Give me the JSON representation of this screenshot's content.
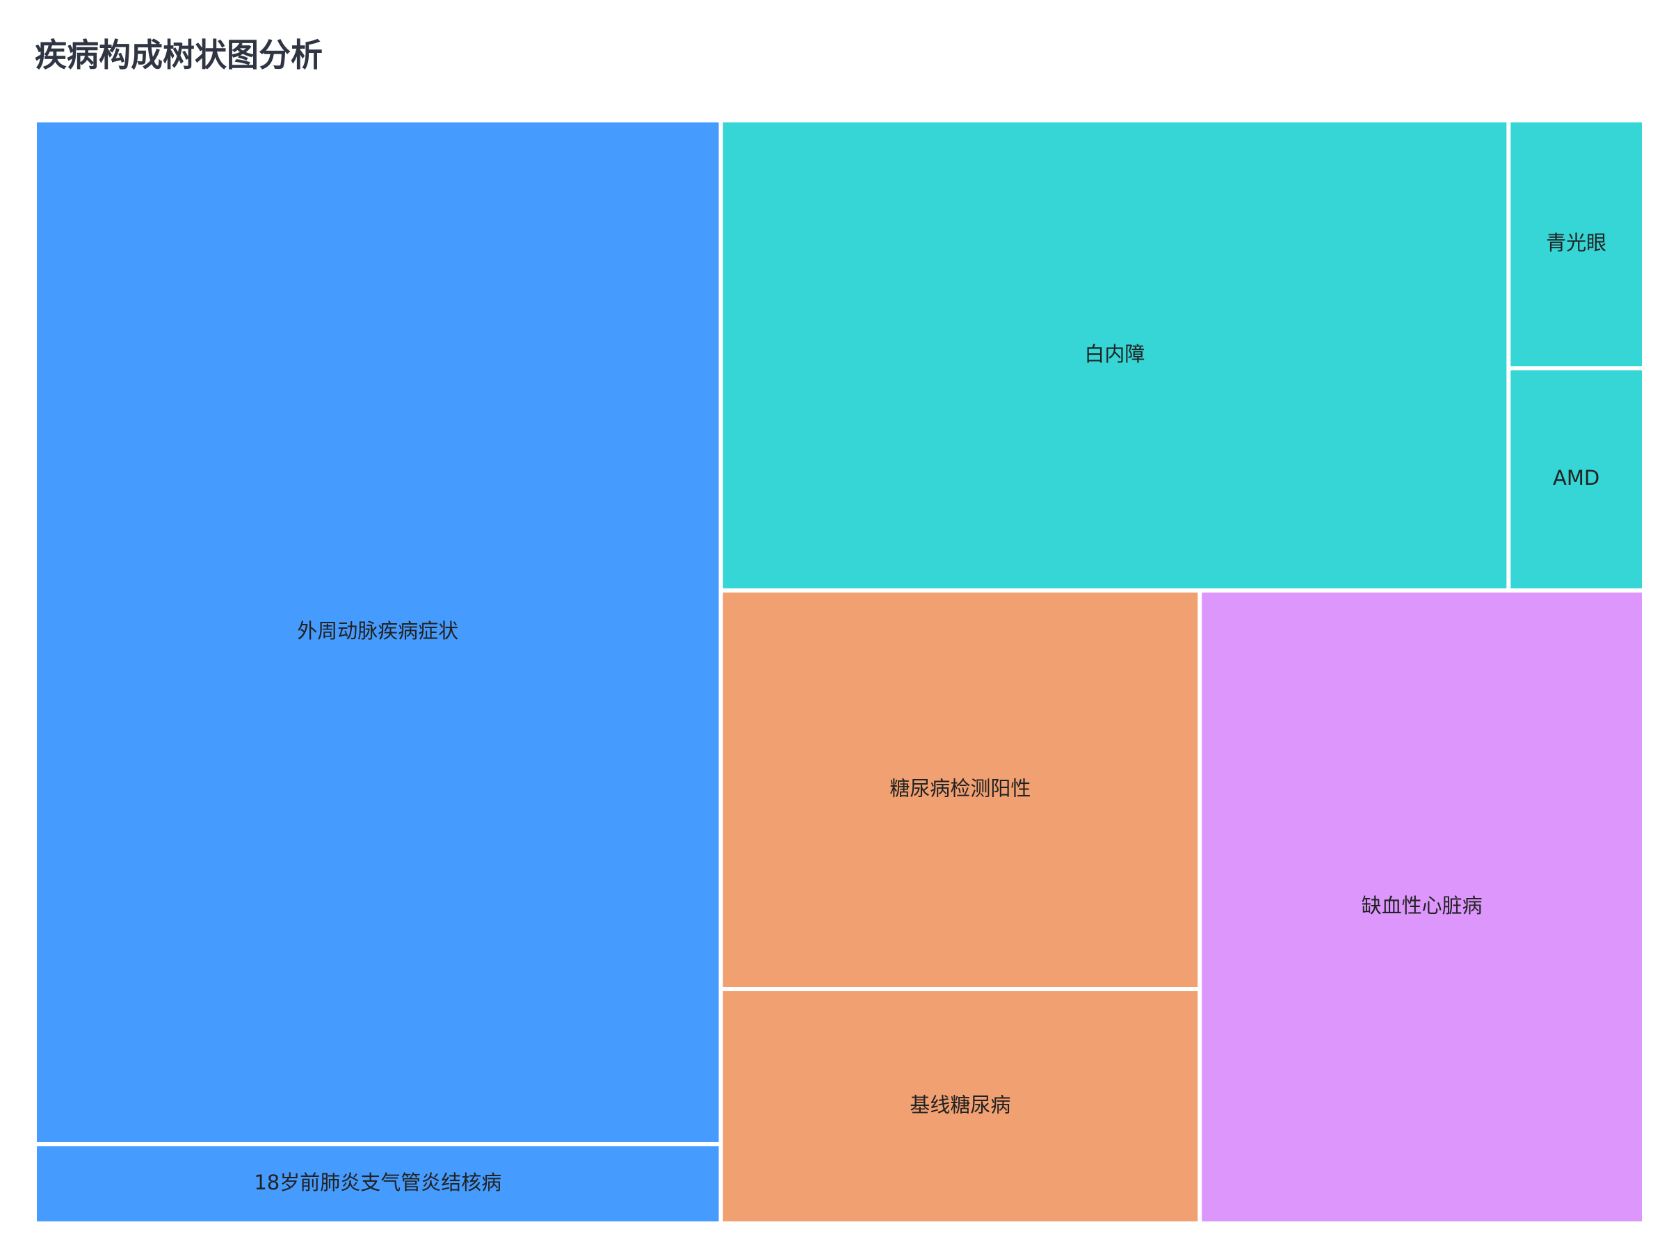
{
  "chart_data": {
    "type": "treemap",
    "title": "疾病构成树状图分析",
    "groups": [
      {
        "color": "#469cfe",
        "items": [
          {
            "label": "外周动脉疾病症状",
            "value": 607
          },
          {
            "label": "18岁前肺炎支气管炎结核病",
            "value": 47
          }
        ]
      },
      {
        "color": "#35d6d5",
        "items": [
          {
            "label": "白内障",
            "value": 320
          },
          {
            "label": "青光眼",
            "value": 29
          },
          {
            "label": "AMD",
            "value": 26
          }
        ]
      },
      {
        "color": "#f1a072",
        "items": [
          {
            "label": "糖尿病检测阳性",
            "value": 165
          },
          {
            "label": "基线糖尿病",
            "value": 97
          }
        ]
      },
      {
        "color": "#dd97fc",
        "items": [
          {
            "label": "缺血性心脏病",
            "value": 243
          }
        ]
      }
    ]
  }
}
